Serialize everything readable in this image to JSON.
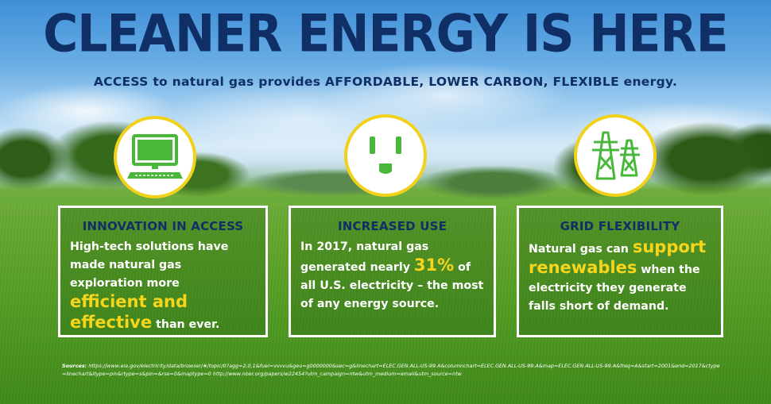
{
  "header": {
    "title": "CLEANER ENERGY IS HERE",
    "subtitle": "ACCESS to natural gas provides AFFORDABLE, LOWER CARBON, FLEXIBLE energy."
  },
  "colors": {
    "headline": "#0f2f66",
    "icon_green": "#49b83a",
    "highlight_yellow": "#f7d51b",
    "icon_ring": "#f2d11b"
  },
  "cards": [
    {
      "icon": "computer-icon",
      "title": "INNOVATION IN ACCESS",
      "body_part1": "High-tech solutions have made natural gas exploration more ",
      "highlight": "efficient and effective",
      "body_part2": " than ever."
    },
    {
      "icon": "electrical-outlet-icon",
      "title": "INCREASED USE",
      "body_part1": "In 2017, natural gas generated nearly ",
      "highlight": "31%",
      "body_part2": " of all U.S. electricity – the most of any energy source."
    },
    {
      "icon": "power-tower-icon",
      "title": "GRID FLEXIBILITY",
      "body_part1": "Natural gas can ",
      "highlight": "support renewables",
      "body_part2": " when the electricity they generate falls short of demand."
    }
  ],
  "sources": {
    "label": "Sources:",
    "text": "https://www.eia.gov/electricity/data/browser/#/topic/0?agg=2,0,1&fuel=vvvvu&geo=g0000000&sec=g&linechart=ELEC.GEN.ALL-US-99.A&columnchart=ELEC.GEN.ALL-US-99.A&map=ELEC.GEN.ALL-US-99.A&freq=A&start=2001&end=2017&ctype=linechart&ltype=pin&rtype=s&pin=&rse=0&maptype=0 http://www.nber.org/papers/w22454?utm_campaign=ntw&utm_medium=email&utm_source=ntw"
  }
}
